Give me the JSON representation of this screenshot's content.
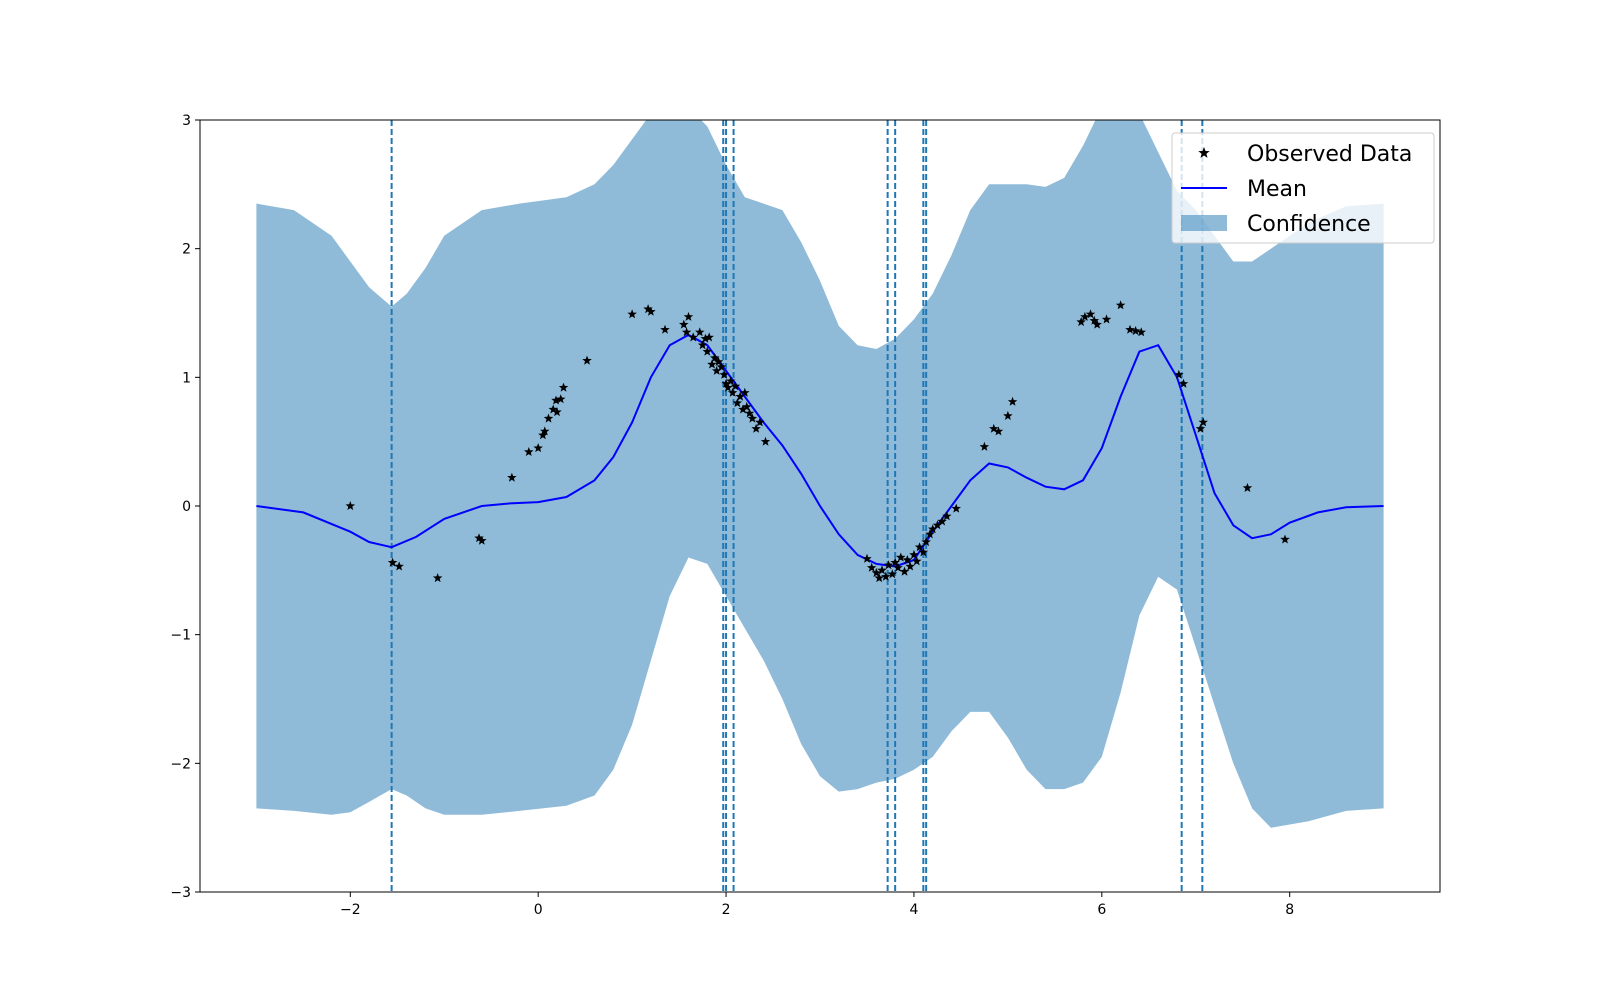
{
  "chart_data": {
    "type": "line",
    "xlim": [
      -3.6,
      9.6
    ],
    "ylim": [
      -3,
      3
    ],
    "x_ticks": [
      -2,
      0,
      2,
      4,
      6,
      8
    ],
    "y_ticks": [
      -3,
      -2,
      -1,
      0,
      1,
      2,
      3
    ],
    "x_tick_labels": [
      "−2",
      "0",
      "2",
      "4",
      "6",
      "8"
    ],
    "y_tick_labels": [
      "−3",
      "−2",
      "−1",
      "0",
      "1",
      "2",
      "3"
    ],
    "grid": false,
    "legend_position": "top-right",
    "legend": [
      {
        "label": "Observed Data",
        "kind": "marker"
      },
      {
        "label": "Mean",
        "kind": "line"
      },
      {
        "label": "Confidence",
        "kind": "patch"
      }
    ],
    "colors": {
      "mean": "#0000ff",
      "confidence": "#1f77b4",
      "observed": "#000000",
      "vlines": "#1f77b4"
    },
    "mean": {
      "x": [
        -3.0,
        -2.5,
        -2.0,
        -1.8,
        -1.56,
        -1.3,
        -1.0,
        -0.6,
        -0.3,
        0.0,
        0.3,
        0.6,
        0.8,
        1.0,
        1.2,
        1.4,
        1.6,
        1.8,
        2.0,
        2.2,
        2.4,
        2.6,
        2.8,
        3.0,
        3.2,
        3.4,
        3.6,
        3.8,
        4.0,
        4.2,
        4.4,
        4.6,
        4.8,
        5.0,
        5.2,
        5.4,
        5.6,
        5.8,
        6.0,
        6.2,
        6.4,
        6.6,
        6.8,
        7.0,
        7.2,
        7.4,
        7.6,
        7.8,
        8.0,
        8.3,
        8.6,
        9.0
      ],
      "y": [
        0.0,
        -0.05,
        -0.2,
        -0.28,
        -0.32,
        -0.24,
        -0.1,
        0.0,
        0.02,
        0.03,
        0.07,
        0.2,
        0.38,
        0.65,
        1.0,
        1.25,
        1.33,
        1.25,
        1.05,
        0.85,
        0.65,
        0.47,
        0.25,
        0.0,
        -0.22,
        -0.38,
        -0.45,
        -0.47,
        -0.42,
        -0.2,
        0.0,
        0.2,
        0.33,
        0.3,
        0.22,
        0.15,
        0.13,
        0.2,
        0.45,
        0.85,
        1.2,
        1.25,
        1.0,
        0.55,
        0.1,
        -0.15,
        -0.25,
        -0.22,
        -0.13,
        -0.05,
        -0.01,
        0.0
      ]
    },
    "confidence_upper": {
      "x": [
        -3.0,
        -2.6,
        -2.2,
        -2.0,
        -1.8,
        -1.56,
        -1.4,
        -1.2,
        -1.0,
        -0.6,
        -0.2,
        0.3,
        0.6,
        0.8,
        1.0,
        1.2,
        1.4,
        1.6,
        1.8,
        2.0,
        2.2,
        2.4,
        2.6,
        2.8,
        3.0,
        3.2,
        3.4,
        3.6,
        3.8,
        4.0,
        4.2,
        4.4,
        4.6,
        4.8,
        5.0,
        5.2,
        5.4,
        5.6,
        5.8,
        6.0,
        6.2,
        6.4,
        6.6,
        6.8,
        7.0,
        7.2,
        7.4,
        7.6,
        7.8,
        8.2,
        8.6,
        9.0
      ],
      "y": [
        2.35,
        2.3,
        2.1,
        1.9,
        1.7,
        1.55,
        1.65,
        1.85,
        2.1,
        2.3,
        2.35,
        2.4,
        2.5,
        2.65,
        2.85,
        3.05,
        3.15,
        3.1,
        2.95,
        2.65,
        2.4,
        2.35,
        2.3,
        2.05,
        1.75,
        1.4,
        1.25,
        1.22,
        1.3,
        1.45,
        1.65,
        1.95,
        2.3,
        2.5,
        2.5,
        2.5,
        2.48,
        2.55,
        2.8,
        3.1,
        3.2,
        3.05,
        2.75,
        2.45,
        2.3,
        2.1,
        1.9,
        1.9,
        2.0,
        2.2,
        2.33,
        2.35
      ]
    },
    "confidence_lower": {
      "x": [
        -3.0,
        -2.6,
        -2.2,
        -2.0,
        -1.8,
        -1.56,
        -1.4,
        -1.2,
        -1.0,
        -0.6,
        -0.2,
        0.3,
        0.6,
        0.8,
        1.0,
        1.2,
        1.4,
        1.6,
        1.8,
        2.0,
        2.2,
        2.4,
        2.6,
        2.8,
        3.0,
        3.2,
        3.4,
        3.6,
        3.8,
        4.0,
        4.2,
        4.4,
        4.6,
        4.8,
        5.0,
        5.2,
        5.4,
        5.6,
        5.8,
        6.0,
        6.2,
        6.4,
        6.6,
        6.8,
        7.0,
        7.2,
        7.4,
        7.6,
        7.8,
        8.2,
        8.6,
        9.0
      ],
      "y": [
        -2.35,
        -2.37,
        -2.4,
        -2.38,
        -2.3,
        -2.2,
        -2.25,
        -2.35,
        -2.4,
        -2.4,
        -2.37,
        -2.33,
        -2.25,
        -2.05,
        -1.7,
        -1.2,
        -0.7,
        -0.4,
        -0.45,
        -0.7,
        -0.95,
        -1.2,
        -1.5,
        -1.85,
        -2.1,
        -2.22,
        -2.2,
        -2.15,
        -2.12,
        -2.05,
        -1.95,
        -1.75,
        -1.6,
        -1.6,
        -1.8,
        -2.05,
        -2.2,
        -2.2,
        -2.15,
        -1.95,
        -1.45,
        -0.85,
        -0.55,
        -0.65,
        -1.1,
        -1.55,
        -2.0,
        -2.35,
        -2.5,
        -2.45,
        -2.37,
        -2.35
      ]
    },
    "observed": {
      "x": [
        -2.0,
        -1.55,
        -1.48,
        -1.07,
        -0.63,
        -0.6,
        -0.28,
        -0.1,
        0.0,
        0.05,
        0.07,
        0.11,
        0.16,
        0.19,
        0.2,
        0.24,
        0.27,
        0.52,
        1.0,
        1.17,
        1.2,
        1.35,
        1.55,
        1.58,
        1.6,
        1.65,
        1.72,
        1.75,
        1.78,
        1.8,
        1.82,
        1.85,
        1.88,
        1.9,
        1.92,
        1.95,
        1.98,
        2.0,
        2.02,
        2.05,
        2.07,
        2.1,
        2.12,
        2.15,
        2.18,
        2.2,
        2.22,
        2.25,
        2.28,
        2.32,
        2.36,
        2.42,
        3.5,
        3.55,
        3.6,
        3.63,
        3.66,
        3.7,
        3.73,
        3.77,
        3.8,
        3.83,
        3.86,
        3.9,
        3.93,
        3.96,
        4.0,
        4.03,
        4.06,
        4.1,
        4.13,
        4.17,
        4.2,
        4.25,
        4.3,
        4.35,
        4.45,
        4.75,
        4.85,
        4.9,
        5.0,
        5.05,
        5.78,
        5.82,
        5.88,
        5.92,
        5.95,
        6.05,
        6.2,
        6.3,
        6.36,
        6.42,
        6.82,
        6.87,
        7.05,
        7.08,
        7.55,
        7.95
      ],
      "y": [
        0.0,
        -0.44,
        -0.47,
        -0.56,
        -0.25,
        -0.27,
        0.22,
        0.42,
        0.45,
        0.55,
        0.58,
        0.68,
        0.75,
        0.82,
        0.73,
        0.83,
        0.92,
        1.13,
        1.49,
        1.53,
        1.51,
        1.37,
        1.41,
        1.35,
        1.47,
        1.31,
        1.35,
        1.25,
        1.3,
        1.2,
        1.31,
        1.1,
        1.15,
        1.05,
        1.12,
        1.08,
        1.02,
        0.95,
        0.92,
        0.97,
        0.88,
        0.93,
        0.8,
        0.85,
        0.75,
        0.88,
        0.77,
        0.72,
        0.68,
        0.6,
        0.65,
        0.5,
        -0.41,
        -0.48,
        -0.52,
        -0.56,
        -0.5,
        -0.55,
        -0.46,
        -0.53,
        -0.44,
        -0.48,
        -0.4,
        -0.51,
        -0.42,
        -0.47,
        -0.38,
        -0.43,
        -0.32,
        -0.36,
        -0.28,
        -0.22,
        -0.18,
        -0.15,
        -0.12,
        -0.08,
        -0.02,
        0.46,
        0.6,
        0.58,
        0.7,
        0.81,
        1.43,
        1.47,
        1.49,
        1.44,
        1.41,
        1.45,
        1.56,
        1.37,
        1.36,
        1.35,
        1.02,
        0.95,
        0.6,
        0.65,
        0.14,
        -0.26
      ]
    },
    "vlines_x": [
      -1.56,
      1.97,
      2.0,
      2.08,
      3.72,
      3.8,
      4.1,
      4.13,
      6.85,
      7.07
    ]
  }
}
